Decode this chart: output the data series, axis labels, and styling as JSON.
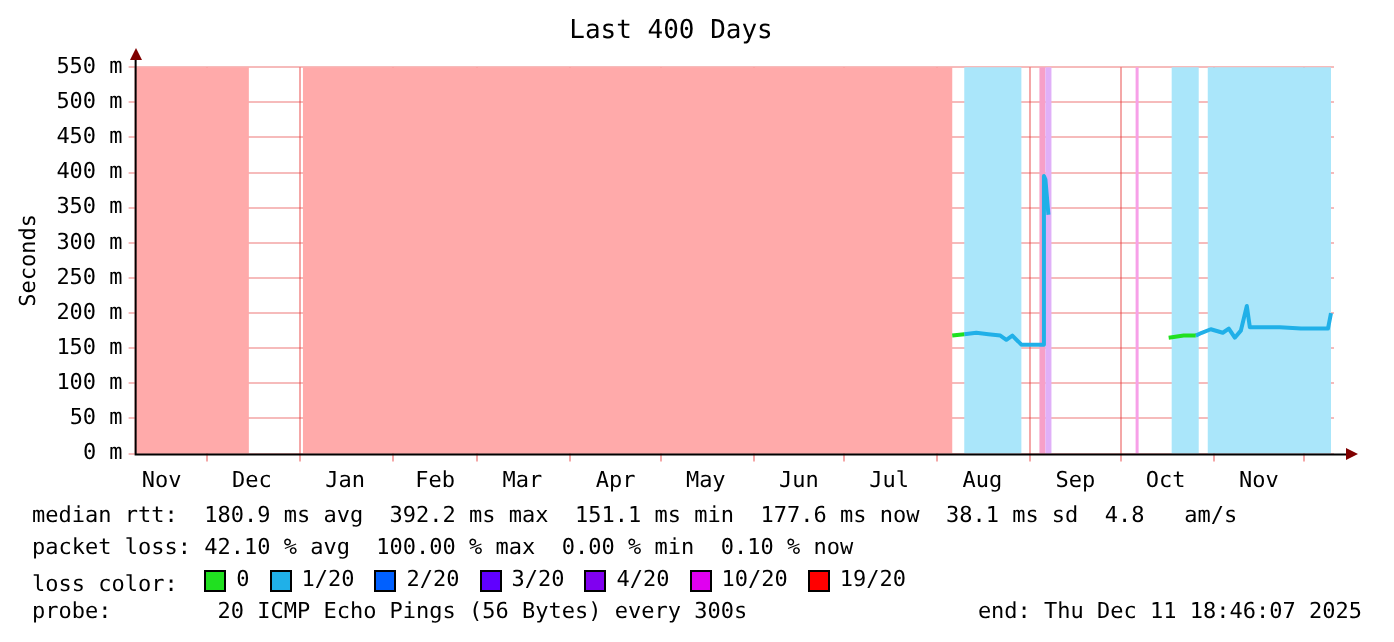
{
  "chart_data": {
    "type": "line",
    "title": "Last 400 Days",
    "ylabel": "Seconds",
    "xlim": [
      "2024-11-07",
      "2025-12-11"
    ],
    "xticks": [
      {
        "value": "2024-11-16",
        "label": "Nov"
      },
      {
        "value": "2024-12-01",
        "label": null
      },
      {
        "value": "2024-12-16",
        "label": "Dec"
      },
      {
        "value": "2025-01-01",
        "label": null
      },
      {
        "value": "2025-01-16",
        "label": "Jan"
      },
      {
        "value": "2025-02-01",
        "label": null
      },
      {
        "value": "2025-02-15",
        "label": "Feb"
      },
      {
        "value": "2025-03-01",
        "label": null
      },
      {
        "value": "2025-03-16",
        "label": "Mar"
      },
      {
        "value": "2025-04-01",
        "label": null
      },
      {
        "value": "2025-04-16",
        "label": "Apr"
      },
      {
        "value": "2025-05-01",
        "label": null
      },
      {
        "value": "2025-05-16",
        "label": "May"
      },
      {
        "value": "2025-06-01",
        "label": null
      },
      {
        "value": "2025-06-16",
        "label": "Jun"
      },
      {
        "value": "2025-07-01",
        "label": null
      },
      {
        "value": "2025-07-16",
        "label": "Jul"
      },
      {
        "value": "2025-08-01",
        "label": null
      },
      {
        "value": "2025-08-16",
        "label": "Aug"
      },
      {
        "value": "2025-09-01",
        "label": null
      },
      {
        "value": "2025-09-16",
        "label": "Sep"
      },
      {
        "value": "2025-10-01",
        "label": null
      },
      {
        "value": "2025-10-16",
        "label": "Oct"
      },
      {
        "value": "2025-11-01",
        "label": null
      },
      {
        "value": "2025-11-16",
        "label": "Nov"
      },
      {
        "value": "2025-12-01",
        "label": null
      }
    ],
    "ylim": [
      0,
      550
    ],
    "yticks": [
      {
        "value": 0,
        "label": "0 m"
      },
      {
        "value": 50,
        "label": "50 m"
      },
      {
        "value": 100,
        "label": "100 m"
      },
      {
        "value": 150,
        "label": "150 m"
      },
      {
        "value": 200,
        "label": "200 m"
      },
      {
        "value": 250,
        "label": "250 m"
      },
      {
        "value": 300,
        "label": "300 m"
      },
      {
        "value": 350,
        "label": "350 m"
      },
      {
        "value": 400,
        "label": "400 m"
      },
      {
        "value": 450,
        "label": "450 m"
      },
      {
        "value": 500,
        "label": "500 m"
      },
      {
        "value": 550,
        "label": "550 m"
      }
    ],
    "grid": true,
    "marker": "none",
    "line_style": "solid",
    "legend": "bottom",
    "legend_title": "loss color:",
    "series": [
      {
        "name": "0",
        "color": "#20e020",
        "x": [
          "2025-08-06",
          "2025-08-10"
        ],
        "values": [
          168,
          170
        ]
      },
      {
        "color": "#20e020",
        "x": [
          "2025-10-17",
          "2025-10-22",
          "2025-10-26"
        ],
        "values": [
          165,
          168,
          168
        ]
      },
      {
        "name": "1/20",
        "color": "#20b0e8",
        "x": [
          "2025-08-10",
          "2025-08-14",
          "2025-08-18",
          "2025-08-22",
          "2025-08-24",
          "2025-08-26",
          "2025-08-29",
          "2025-09-05",
          "2025-09-05T12:00",
          "2025-09-06",
          "2025-09-07",
          "2025-10-07",
          "2025-10-26",
          "2025-10-28",
          "2025-10-31",
          "2025-11-04",
          "2025-11-06",
          "2025-11-08",
          "2025-11-10",
          "2025-11-12",
          "2025-11-13",
          "2025-11-23",
          "2025-11-30",
          "2025-12-06",
          "2025-12-09",
          "2025-12-10"
        ],
        "values": [
          170,
          172,
          170,
          168,
          162,
          168,
          155,
          155,
          395,
          390,
          340,
          null,
          168,
          172,
          177,
          172,
          178,
          165,
          175,
          210,
          180,
          180,
          178,
          178,
          178,
          200
        ]
      },
      {
        "name": "2/20",
        "color": "#0060ff"
      },
      {
        "name": "3/20",
        "color": "#6000ff"
      },
      {
        "name": "4/20",
        "color": "#8000f0"
      },
      {
        "name": "10/20",
        "color": "#e000f0"
      },
      {
        "name": "19/20",
        "color": "#ff0000"
      }
    ],
    "bands": [
      {
        "axis": "x",
        "from": "2024-11-07",
        "to": "2024-12-15",
        "color": "#ffaaaa"
      },
      {
        "axis": "x",
        "from": "2025-01-02",
        "to": "2025-08-06",
        "color": "#ffaaaa"
      },
      {
        "axis": "x",
        "from": "2025-08-10",
        "to": "2025-08-29",
        "color": "#aae6fa"
      },
      {
        "axis": "x",
        "from": "2025-09-04",
        "to": "2025-09-06",
        "color": "#f7a0c8"
      },
      {
        "axis": "x",
        "from": "2025-09-06",
        "to": "2025-09-08",
        "color": "#e0b0f8"
      },
      {
        "axis": "x",
        "from": "2025-10-06",
        "to": "2025-10-07",
        "color": "#f7a0e8"
      },
      {
        "axis": "x",
        "from": "2025-10-18",
        "to": "2025-10-27",
        "color": "#aae6fa"
      },
      {
        "axis": "x",
        "from": "2025-10-30",
        "to": "2025-12-10",
        "color": "#aae6fa"
      }
    ],
    "annotations": [
      "median rtt:  180.9 ms avg  392.2 ms max  151.1 ms min  177.6 ms now  38.1 ms sd  4.8   am/s",
      "packet loss: 42.10 % avg  100.00 % max  0.00 % min  0.10 % now",
      "probe:        20 ICMP Echo Pings (56 Bytes) every 300s",
      "end: Thu Dec 11 18:46:07 2025"
    ]
  }
}
